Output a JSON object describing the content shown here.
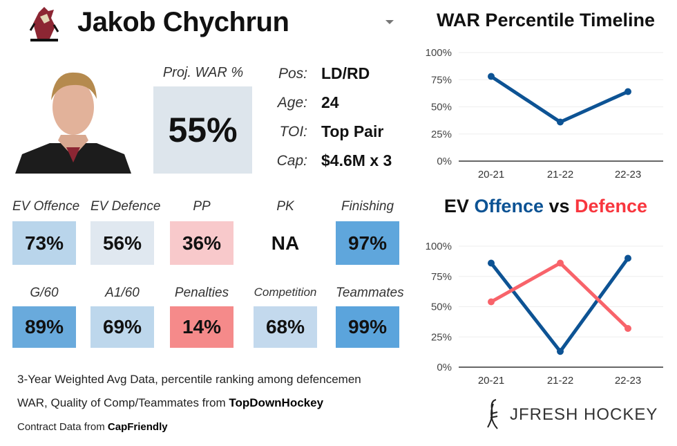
{
  "player": {
    "name": "Jakob Chychrun",
    "team_logo": "coyotes-logo"
  },
  "proj_war": {
    "label": "Proj. WAR %",
    "value": "55%"
  },
  "info": [
    {
      "label": "Pos:",
      "value": "LD/RD"
    },
    {
      "label": "Age:",
      "value": "24"
    },
    {
      "label": "TOI:",
      "value": "Top Pair"
    },
    {
      "label": "Cap:",
      "value": "$4.6M x 3"
    }
  ],
  "tiles": [
    {
      "label": "EV Offence",
      "value": "73%",
      "color": "#b9d5eb"
    },
    {
      "label": "EV Defence",
      "value": "56%",
      "color": "#e0e8f0"
    },
    {
      "label": "PP",
      "value": "36%",
      "color": "#f8c9cb"
    },
    {
      "label": "PK",
      "value": "NA",
      "color": "#ffffff"
    },
    {
      "label": "Finishing",
      "value": "97%",
      "color": "#5fa6dc"
    },
    {
      "label": "G/60",
      "value": "89%",
      "color": "#69aadc"
    },
    {
      "label": "A1/60",
      "value": "69%",
      "color": "#bdd7ec"
    },
    {
      "label": "Penalties",
      "value": "14%",
      "color": "#f58a8a"
    },
    {
      "label": "Competition",
      "value": "68%",
      "color": "#c3d9ed"
    },
    {
      "label": "Teammates",
      "value": "99%",
      "color": "#5ba4dc"
    }
  ],
  "footer": {
    "line1": "3-Year Weighted Avg Data, percentile ranking among defencemen",
    "line2_pre": "WAR, Quality of Comp/Teammates from ",
    "line2_bold": "TopDownHockey",
    "line3_pre": "Contract Data from ",
    "line3_bold": "CapFriendly"
  },
  "brand": "JFRESH HOCKEY",
  "chart_data": [
    {
      "type": "line",
      "title": "WAR Percentile Timeline",
      "categories": [
        "20-21",
        "21-22",
        "22-23"
      ],
      "ylim": [
        0,
        100
      ],
      "yticks": [
        "0%",
        "25%",
        "50%",
        "75%",
        "100%"
      ],
      "grid": true,
      "series": [
        {
          "values": [
            78,
            36,
            64
          ],
          "color": "#0d5394"
        }
      ]
    },
    {
      "type": "line",
      "title": {
        "p1": "EV ",
        "p2": "Offence",
        "p3": " vs ",
        "p4": "Defence"
      },
      "categories": [
        "20-21",
        "21-22",
        "22-23"
      ],
      "ylim": [
        0,
        100
      ],
      "yticks": [
        "0%",
        "25%",
        "50%",
        "75%",
        "100%"
      ],
      "grid": true,
      "series": [
        {
          "name": "Offence",
          "values": [
            86,
            13,
            90
          ],
          "color": "#0d5394"
        },
        {
          "name": "Defence",
          "values": [
            54,
            86,
            32
          ],
          "color": "#f8636a"
        }
      ]
    }
  ]
}
